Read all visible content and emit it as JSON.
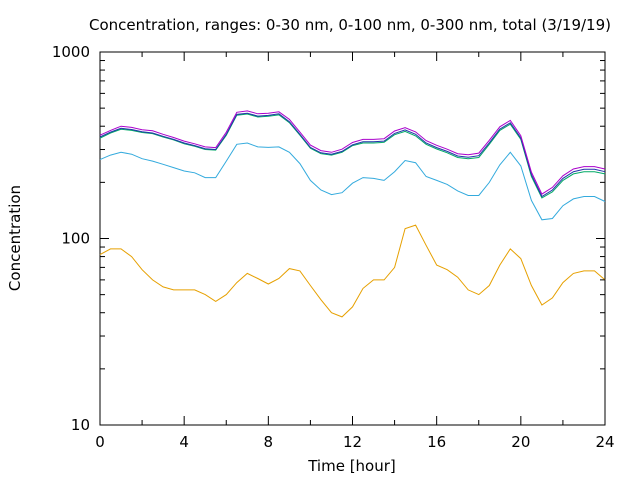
{
  "chart_data": {
    "type": "line",
    "title": "Concentration, ranges: 0-30 nm, 0-100 nm, 0-300 nm, total (3/19/19)",
    "xlabel": "Time [hour]",
    "ylabel": "Concentration",
    "xlim": [
      0,
      24
    ],
    "ylim": [
      10,
      1000
    ],
    "yscale": "log",
    "grid": false,
    "legend": "none",
    "x_ticks": [
      "0",
      "4",
      "8",
      "12",
      "16",
      "20",
      "24"
    ],
    "y_ticks": [
      "10",
      "100",
      "1000"
    ],
    "x": [
      0,
      0.5,
      1,
      1.5,
      2,
      2.5,
      3,
      3.5,
      4,
      4.5,
      5,
      5.5,
      6,
      6.5,
      7,
      7.5,
      8,
      8.5,
      9,
      9.5,
      10,
      10.5,
      11,
      11.5,
      12,
      12.5,
      13,
      13.5,
      14,
      14.5,
      15,
      15.5,
      16,
      16.5,
      17,
      17.5,
      18,
      18.5,
      19,
      19.5,
      20,
      20.5,
      21,
      21.5,
      22,
      22.5,
      23,
      23.5,
      24
    ],
    "series": [
      {
        "color": "#e6a000",
        "values": [
          82,
          88,
          88,
          80,
          68,
          60,
          55,
          53,
          53,
          53,
          50,
          46,
          50,
          58,
          65,
          61,
          57,
          61,
          69,
          67,
          56,
          47,
          40,
          38,
          43,
          54,
          60,
          60,
          70,
          113,
          118,
          92,
          72,
          68,
          62,
          53,
          50,
          56,
          72,
          88,
          78,
          56,
          44,
          48,
          58,
          65,
          67,
          67,
          60
        ]
      },
      {
        "color": "#33aadd",
        "values": [
          265,
          280,
          290,
          283,
          268,
          260,
          250,
          240,
          230,
          225,
          212,
          212,
          260,
          320,
          325,
          310,
          308,
          310,
          290,
          252,
          205,
          182,
          172,
          176,
          198,
          212,
          210,
          205,
          228,
          262,
          255,
          215,
          205,
          195,
          180,
          170,
          170,
          200,
          248,
          290,
          245,
          160,
          126,
          128,
          150,
          163,
          168,
          168,
          158
        ]
      },
      {
        "color": "#00aa66",
        "values": [
          345,
          368,
          385,
          380,
          370,
          365,
          350,
          338,
          322,
          312,
          300,
          298,
          358,
          458,
          465,
          448,
          452,
          460,
          418,
          358,
          305,
          285,
          280,
          290,
          315,
          325,
          325,
          328,
          360,
          375,
          355,
          320,
          302,
          288,
          272,
          268,
          272,
          320,
          380,
          410,
          340,
          215,
          165,
          178,
          205,
          222,
          228,
          228,
          222
        ]
      },
      {
        "color": "#2233aa",
        "values": [
          350,
          372,
          390,
          384,
          374,
          368,
          353,
          340,
          325,
          315,
          303,
          300,
          362,
          463,
          470,
          453,
          457,
          466,
          423,
          362,
          308,
          288,
          283,
          293,
          318,
          330,
          330,
          333,
          366,
          382,
          362,
          325,
          307,
          293,
          277,
          273,
          278,
          326,
          386,
          417,
          346,
          220,
          168,
          182,
          210,
          228,
          235,
          235,
          228
        ]
      },
      {
        "color": "#aa00cc",
        "values": [
          358,
          380,
          400,
          394,
          383,
          378,
          362,
          348,
          333,
          322,
          310,
          307,
          372,
          475,
          483,
          466,
          470,
          478,
          435,
          372,
          317,
          296,
          290,
          301,
          327,
          340,
          340,
          343,
          377,
          393,
          373,
          335,
          316,
          301,
          285,
          281,
          287,
          336,
          397,
          430,
          356,
          227,
          173,
          188,
          217,
          236,
          243,
          243,
          236
        ]
      }
    ]
  }
}
